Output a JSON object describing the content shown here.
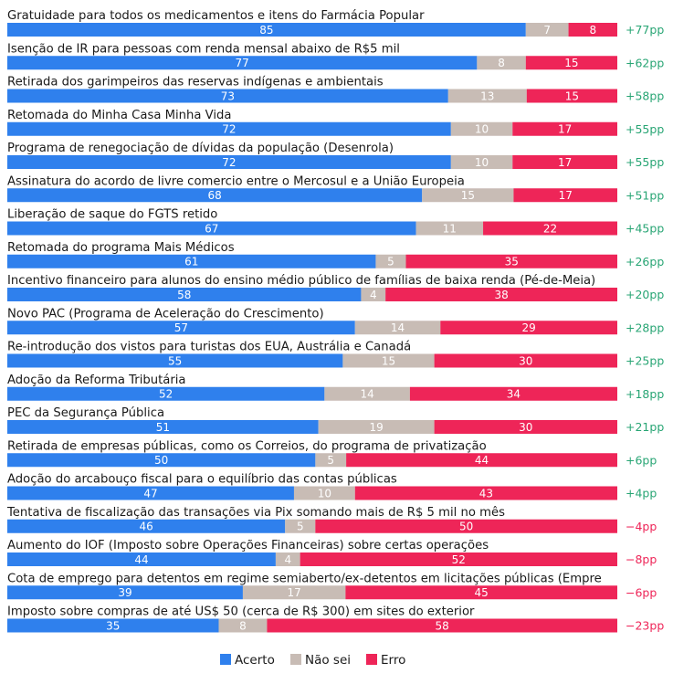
{
  "chart_data": {
    "type": "bar",
    "orientation": "horizontal",
    "stacked": true,
    "series": [
      {
        "name": "Acerto",
        "color": "#2f80ed"
      },
      {
        "name": "Não sei",
        "color": "#c8bcb5"
      },
      {
        "name": "Erro",
        "color": "#ee2558"
      }
    ],
    "colors": {
      "positive_diff": "#28a574",
      "negative_diff": "#ee2558"
    },
    "legend_position": "bottom",
    "grid": false,
    "rows": [
      {
        "label": "Gratuidade para todos os medicamentos e itens do Farmácia Popular",
        "values": [
          85,
          7,
          8
        ],
        "labels": [
          "85",
          "7",
          "8"
        ],
        "diff": "+77pp"
      },
      {
        "label": "Isenção de IR para pessoas com renda mensal abaixo de R$5 mil",
        "values": [
          77,
          8,
          15
        ],
        "labels": [
          "77",
          "8",
          "15"
        ],
        "diff": "+62pp"
      },
      {
        "label": "Retirada dos garimpeiros das reservas indígenas e ambientais",
        "values": [
          73,
          13,
          15
        ],
        "labels": [
          "73",
          "13",
          "15"
        ],
        "diff": "+58pp"
      },
      {
        "label": "Retomada do Minha Casa Minha Vida",
        "values": [
          72,
          10,
          17
        ],
        "labels": [
          "72",
          "10",
          "17"
        ],
        "diff": "+55pp"
      },
      {
        "label": "Programa de renegociação de dívidas da população (Desenrola)",
        "values": [
          72,
          10,
          17
        ],
        "labels": [
          "72",
          "10",
          "17"
        ],
        "diff": "+55pp"
      },
      {
        "label": "Assinatura do acordo de livre comercio entre o Mercosul e a União Europeia",
        "values": [
          68,
          15,
          17
        ],
        "labels": [
          "68",
          "15",
          "17"
        ],
        "diff": "+51pp"
      },
      {
        "label": "Liberação de saque do FGTS retido",
        "values": [
          67,
          11,
          22
        ],
        "labels": [
          "67",
          "11",
          "22"
        ],
        "diff": "+45pp"
      },
      {
        "label": "Retomada do programa Mais Médicos",
        "values": [
          61,
          5,
          35
        ],
        "labels": [
          "61",
          "5",
          "35"
        ],
        "diff": "+26pp"
      },
      {
        "label": "Incentivo financeiro para alunos do ensino médio público de famílias de baixa renda (Pé-de-Meia)",
        "values": [
          58,
          4,
          38
        ],
        "labels": [
          "58",
          "4",
          "38"
        ],
        "diff": "+20pp"
      },
      {
        "label": "Novo PAC (Programa de Aceleração do Crescimento)",
        "values": [
          57,
          14,
          29
        ],
        "labels": [
          "57",
          "14",
          "29"
        ],
        "diff": "+28pp"
      },
      {
        "label": "Re-introdução dos vistos para turistas dos EUA, Austrália e Canadá",
        "values": [
          55,
          15,
          30
        ],
        "labels": [
          "55",
          "15",
          "30"
        ],
        "diff": "+25pp"
      },
      {
        "label": "Adoção da Reforma Tributária",
        "values": [
          52,
          14,
          34
        ],
        "labels": [
          "52",
          "14",
          "34"
        ],
        "diff": "+18pp"
      },
      {
        "label": "PEC da Segurança Pública",
        "values": [
          51,
          19,
          30
        ],
        "labels": [
          "51",
          "19",
          "30"
        ],
        "diff": "+21pp"
      },
      {
        "label": "Retirada de empresas públicas, como os Correios, do programa de privatização",
        "values": [
          50,
          5,
          44
        ],
        "labels": [
          "50",
          "5",
          "44"
        ],
        "diff": "+6pp"
      },
      {
        "label": "Adoção do arcabouço fiscal para o equilíbrio das contas públicas",
        "values": [
          47,
          10,
          43
        ],
        "labels": [
          "47",
          "10",
          "43"
        ],
        "diff": "+4pp"
      },
      {
        "label": "Tentativa de fiscalização das transações via Pix somando mais de R$ 5 mil no mês",
        "values": [
          46,
          5,
          50
        ],
        "labels": [
          "46",
          "5",
          "50"
        ],
        "diff": "−4pp"
      },
      {
        "label": "Aumento do IOF (Imposto sobre Operações Financeiras) sobre certas operações",
        "values": [
          44,
          4,
          52
        ],
        "labels": [
          "44",
          "4",
          "52"
        ],
        "diff": "−8pp"
      },
      {
        "label": "Cota de emprego para detentos em regime semiaberto/ex-detentos em licitações públicas (Empre",
        "values": [
          39,
          17,
          45
        ],
        "labels": [
          "39",
          "17",
          "45"
        ],
        "diff": "−6pp"
      },
      {
        "label": "Imposto sobre compras de até US$ 50 (cerca de R$ 300) em sites do exterior",
        "values": [
          35,
          8,
          58
        ],
        "labels": [
          "35",
          "8",
          "58"
        ],
        "diff": "−23pp"
      }
    ]
  }
}
